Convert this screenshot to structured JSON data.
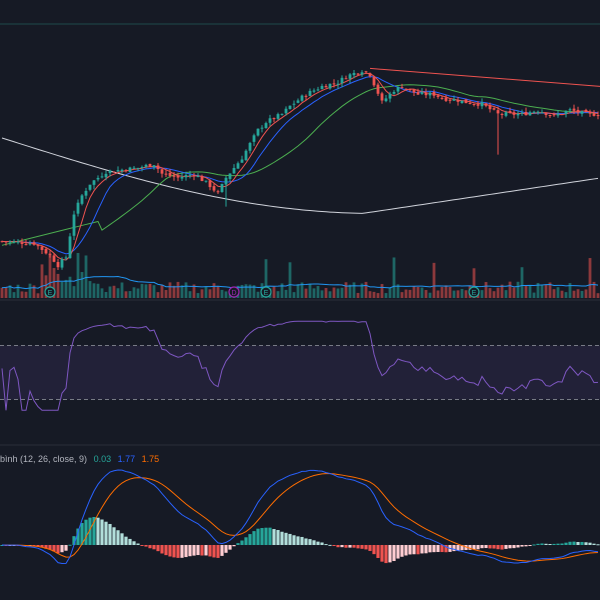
{
  "colors": {
    "background": "#161a25",
    "up": "#26a69a",
    "down": "#ef5350",
    "rsi_line": "#7e57c2",
    "rsi_band": "#7e57c2",
    "macd_line": "#2962ff",
    "signal_line": "#ff6d00"
  },
  "macd_legend": {
    "name": "bình (12, 26, close, 9)",
    "hist": "0.03",
    "macd": "1.77",
    "signal": "1.75",
    "hist_color": "#26a69a",
    "macd_color": "#2962ff",
    "signal_color": "#ff6d00"
  },
  "markers": [
    {
      "label": "E",
      "color": "#26a69a",
      "index": 12
    },
    {
      "label": "D",
      "color": "#9c27b0",
      "index": 58
    },
    {
      "label": "E",
      "color": "#26a69a",
      "index": 66
    },
    {
      "label": "E",
      "color": "#26a69a",
      "index": 118
    }
  ],
  "chart_data": {
    "type": "line",
    "panels": [
      "price",
      "rsi",
      "macd"
    ],
    "price": {
      "candles": [],
      "ma_white": [],
      "ma_green": [],
      "ma_blue": [],
      "ma_red": []
    },
    "volume": [],
    "rsi": [],
    "rsi_bands": [
      70,
      30
    ],
    "macd": [],
    "signal": [],
    "histogram": []
  }
}
